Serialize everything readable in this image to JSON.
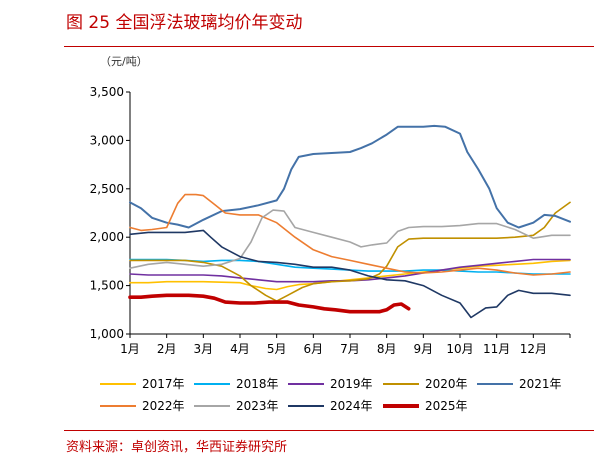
{
  "header": {
    "title": "图 25 全国浮法玻璃均价年变动",
    "unit": "（元/吨）"
  },
  "footer": {
    "source": "资料来源：卓创资讯，华西证券研究所"
  },
  "chart_data": {
    "type": "line",
    "title": "图 25 全国浮法玻璃均价年变动",
    "ylabel": "（元/吨）",
    "xlabel": "",
    "ylim": [
      1000,
      3500
    ],
    "yticks": [
      1000,
      1500,
      2000,
      2500,
      3000,
      3500
    ],
    "ytick_labels": [
      "1,000",
      "1,500",
      "2,000",
      "2,500",
      "3,000",
      "3,500"
    ],
    "xlim": [
      1,
      13
    ],
    "categories": [
      "1月",
      "2月",
      "3月",
      "4月",
      "5月",
      "6月",
      "7月",
      "8月",
      "9月",
      "10月",
      "11月",
      "12月"
    ],
    "grid": false,
    "legend_position": "bottom",
    "series": [
      {
        "name": "2017年",
        "color": "#ffc000",
        "width": 1.6,
        "x": [
          1,
          1.5,
          2,
          2.5,
          3,
          3.5,
          4,
          4.3,
          4.7,
          5,
          5.3,
          5.6,
          6,
          6.5,
          7,
          7.5,
          8,
          8.5,
          9,
          9.5,
          10,
          10.5,
          11,
          11.5,
          12,
          12.5,
          13
        ],
        "y": [
          1530,
          1530,
          1540,
          1540,
          1540,
          1535,
          1530,
          1500,
          1470,
          1460,
          1490,
          1510,
          1520,
          1540,
          1560,
          1580,
          1600,
          1620,
          1640,
          1660,
          1680,
          1700,
          1710,
          1720,
          1730,
          1750,
          1760
        ]
      },
      {
        "name": "2018年",
        "color": "#00b0f0",
        "width": 1.6,
        "x": [
          1,
          1.5,
          2,
          2.5,
          3,
          3.5,
          4,
          4.5,
          5,
          5.5,
          6,
          6.5,
          7,
          7.5,
          8,
          8.5,
          9,
          9.5,
          10,
          10.5,
          11,
          11.5,
          12,
          12.5,
          13
        ],
        "y": [
          1770,
          1770,
          1770,
          1760,
          1750,
          1760,
          1760,
          1750,
          1720,
          1690,
          1680,
          1670,
          1660,
          1650,
          1650,
          1650,
          1660,
          1660,
          1650,
          1640,
          1640,
          1630,
          1620,
          1620,
          1620
        ]
      },
      {
        "name": "2019年",
        "color": "#7030a0",
        "width": 1.6,
        "x": [
          1,
          1.5,
          2,
          2.5,
          3,
          3.5,
          4,
          4.5,
          5,
          5.5,
          6,
          6.5,
          7,
          7.5,
          8,
          8.5,
          9,
          9.5,
          10,
          10.5,
          11,
          11.5,
          12,
          12.5,
          13
        ],
        "y": [
          1620,
          1610,
          1610,
          1610,
          1610,
          1600,
          1580,
          1560,
          1540,
          1540,
          1540,
          1550,
          1550,
          1560,
          1580,
          1600,
          1630,
          1660,
          1690,
          1710,
          1730,
          1750,
          1770,
          1770,
          1770
        ]
      },
      {
        "name": "2020年",
        "color": "#c09000",
        "width": 1.6,
        "x": [
          1,
          1.5,
          2,
          2.5,
          3,
          3.5,
          4,
          4.3,
          4.7,
          5,
          5.3,
          5.7,
          6,
          6.5,
          7,
          7.5,
          7.8,
          8,
          8.3,
          8.6,
          9,
          9.5,
          10,
          10.5,
          11,
          11.5,
          12,
          12.3,
          12.6,
          13
        ],
        "y": [
          1760,
          1760,
          1760,
          1760,
          1740,
          1700,
          1600,
          1500,
          1400,
          1340,
          1400,
          1480,
          1520,
          1540,
          1550,
          1570,
          1620,
          1700,
          1900,
          1980,
          1990,
          1990,
          1990,
          1990,
          1990,
          2000,
          2020,
          2100,
          2250,
          2360
        ]
      },
      {
        "name": "2021年",
        "color": "#4472a8",
        "width": 2,
        "x": [
          1,
          1.3,
          1.6,
          2,
          2.3,
          2.6,
          3,
          3.5,
          4,
          4.5,
          5,
          5.2,
          5.4,
          5.6,
          6,
          6.5,
          7,
          7.3,
          7.6,
          8,
          8.3,
          8.6,
          9,
          9.3,
          9.6,
          10,
          10.2,
          10.5,
          10.8,
          11,
          11.3,
          11.6,
          12,
          12.3,
          12.6,
          13
        ],
        "y": [
          2360,
          2300,
          2200,
          2150,
          2130,
          2100,
          2180,
          2270,
          2290,
          2330,
          2380,
          2500,
          2700,
          2830,
          2860,
          2870,
          2880,
          2920,
          2970,
          3060,
          3140,
          3140,
          3140,
          3150,
          3140,
          3070,
          2880,
          2700,
          2500,
          2300,
          2150,
          2100,
          2150,
          2230,
          2220,
          2160
        ]
      },
      {
        "name": "2022年",
        "color": "#ed7d31",
        "width": 1.6,
        "x": [
          1,
          1.3,
          1.6,
          2,
          2.3,
          2.5,
          2.8,
          3,
          3.3,
          3.6,
          4,
          4.5,
          5,
          5.5,
          6,
          6.5,
          7,
          7.5,
          8,
          8.5,
          9,
          9.5,
          10,
          10.5,
          11,
          11.5,
          12,
          12.5,
          13
        ],
        "y": [
          2100,
          2070,
          2080,
          2100,
          2350,
          2440,
          2440,
          2430,
          2340,
          2250,
          2230,
          2230,
          2150,
          2000,
          1870,
          1800,
          1760,
          1720,
          1680,
          1640,
          1630,
          1640,
          1660,
          1680,
          1660,
          1630,
          1610,
          1620,
          1640
        ]
      },
      {
        "name": "2023年",
        "color": "#a6a6a6",
        "width": 1.6,
        "x": [
          1,
          1.5,
          2,
          2.5,
          3,
          3.5,
          4,
          4.3,
          4.6,
          4.9,
          5.2,
          5.5,
          6,
          6.5,
          7,
          7.3,
          7.6,
          8,
          8.3,
          8.6,
          9,
          9.5,
          10,
          10.5,
          11,
          11.5,
          12,
          12.5,
          13
        ],
        "y": [
          1680,
          1720,
          1740,
          1720,
          1700,
          1720,
          1780,
          1950,
          2200,
          2280,
          2270,
          2100,
          2050,
          2000,
          1950,
          1900,
          1920,
          1940,
          2060,
          2100,
          2110,
          2110,
          2120,
          2140,
          2140,
          2080,
          1990,
          2020,
          2020
        ]
      },
      {
        "name": "2024年",
        "color": "#1f3864",
        "width": 1.6,
        "x": [
          1,
          1.5,
          2,
          2.5,
          3,
          3.2,
          3.5,
          4,
          4.5,
          5,
          5.5,
          6,
          6.5,
          7,
          7.5,
          8,
          8.5,
          9,
          9.5,
          10,
          10.3,
          10.7,
          11,
          11.3,
          11.6,
          12,
          12.5,
          13
        ],
        "y": [
          2030,
          2050,
          2050,
          2050,
          2070,
          2000,
          1900,
          1800,
          1750,
          1740,
          1720,
          1690,
          1690,
          1660,
          1600,
          1560,
          1550,
          1500,
          1400,
          1320,
          1170,
          1270,
          1280,
          1400,
          1450,
          1420,
          1420,
          1400
        ]
      },
      {
        "name": "2025年",
        "color": "#c00000",
        "width": 3.6,
        "x": [
          1,
          1.3,
          1.6,
          2,
          2.3,
          2.6,
          3,
          3.3,
          3.6,
          4,
          4.4,
          4.8,
          5,
          5.3,
          5.6,
          6,
          6.3,
          6.6,
          7,
          7.3,
          7.6,
          7.8,
          8,
          8.2,
          8.4,
          8.6
        ],
        "y": [
          1380,
          1380,
          1390,
          1400,
          1400,
          1400,
          1390,
          1370,
          1330,
          1320,
          1320,
          1330,
          1330,
          1330,
          1300,
          1280,
          1260,
          1250,
          1230,
          1230,
          1230,
          1230,
          1250,
          1300,
          1310,
          1260
        ]
      }
    ]
  }
}
